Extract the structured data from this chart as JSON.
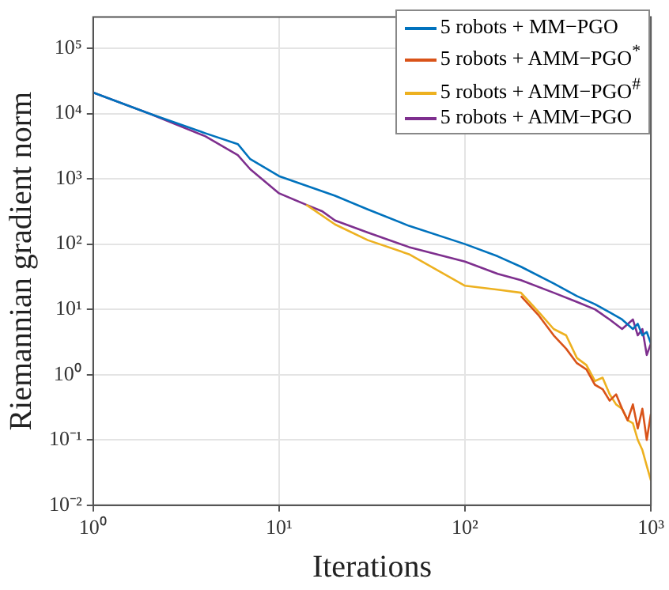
{
  "chart_data": {
    "type": "line",
    "xlabel": "Iterations",
    "ylabel": "Riemannian gradient norm",
    "log": "xy",
    "grid": true,
    "legend": "top right",
    "line_style": "solid",
    "marker": "none",
    "xlim": [
      1,
      1000
    ],
    "ylim": [
      0.01,
      300000
    ],
    "xticks": [
      {
        "value": 1,
        "label": "10⁰"
      },
      {
        "value": 10,
        "label": "10¹"
      },
      {
        "value": 100,
        "label": "10²"
      },
      {
        "value": 1000,
        "label": "10³"
      }
    ],
    "yticks": [
      {
        "value": 0.01,
        "label": "10⁻²"
      },
      {
        "value": 0.1,
        "label": "10⁻¹"
      },
      {
        "value": 1,
        "label": "10⁰"
      },
      {
        "value": 10,
        "label": "10¹"
      },
      {
        "value": 100,
        "label": "10²"
      },
      {
        "value": 1000,
        "label": "10³"
      },
      {
        "value": 10000,
        "label": "10⁴"
      },
      {
        "value": 100000,
        "label": "10⁵"
      }
    ],
    "series": [
      {
        "name": "5 robots + MM−PGO",
        "color": "#0072bd",
        "x": [
          1,
          2,
          4,
          6,
          7,
          10,
          20,
          30,
          50,
          100,
          150,
          200,
          300,
          400,
          500,
          600,
          700,
          800,
          850,
          900,
          950,
          1000
        ],
        "values": [
          21000,
          10000,
          5000,
          3400,
          2000,
          1100,
          550,
          340,
          190,
          100,
          65,
          45,
          25,
          16,
          12,
          9,
          7,
          5,
          6,
          4,
          4.5,
          3
        ]
      },
      {
        "name": "5 robots + AMM−PGO$^{*}$",
        "color": "#d95319",
        "x": [
          200,
          250,
          300,
          350,
          400,
          450,
          500,
          550,
          600,
          650,
          700,
          750,
          800,
          850,
          900,
          950,
          1000
        ],
        "values": [
          16,
          8,
          4,
          2.5,
          1.5,
          1.2,
          0.7,
          0.6,
          0.4,
          0.5,
          0.3,
          0.2,
          0.35,
          0.15,
          0.3,
          0.1,
          0.25
        ]
      },
      {
        "name": "5 robots + AMM−PGO$^{#}$",
        "color": "#edb120",
        "x": [
          14,
          20,
          30,
          50,
          100,
          150,
          200,
          250,
          300,
          350,
          400,
          450,
          500,
          550,
          600,
          650,
          700,
          750,
          800,
          850,
          900,
          950,
          1000
        ],
        "values": [
          400,
          200,
          115,
          70,
          23,
          20,
          18,
          9,
          5,
          4,
          1.8,
          1.4,
          0.8,
          0.9,
          0.5,
          0.35,
          0.3,
          0.2,
          0.18,
          0.1,
          0.07,
          0.04,
          0.024
        ]
      },
      {
        "name": "5 robots + AMM−PGO",
        "color": "#7e2f8e",
        "x": [
          1,
          2,
          4,
          6,
          7,
          10,
          14,
          17,
          20,
          30,
          50,
          100,
          150,
          200,
          300,
          400,
          500,
          600,
          700,
          800,
          850,
          900,
          950,
          1000
        ],
        "values": [
          21000,
          10000,
          4500,
          2300,
          1400,
          600,
          400,
          320,
          230,
          150,
          90,
          54,
          35,
          28,
          18,
          13,
          10,
          7,
          5,
          7,
          4,
          5,
          2,
          3
        ]
      }
    ]
  }
}
